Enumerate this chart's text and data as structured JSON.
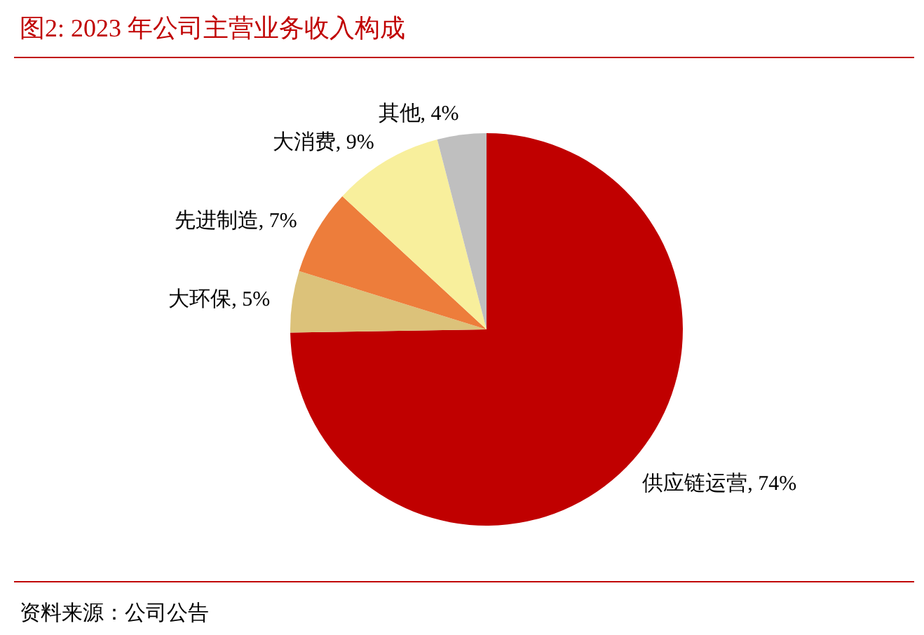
{
  "chart_data": {
    "type": "pie",
    "title": "图2:  2023 年公司主营业务收入构成",
    "categories": [
      "供应链运营",
      "大环保",
      "先进制造",
      "大消费",
      "其他"
    ],
    "values": [
      74,
      5,
      7,
      9,
      4
    ],
    "value_labels": [
      "74%",
      "5%",
      "7%",
      "9%",
      "4%"
    ],
    "colors": [
      "#c00000",
      "#dcc27a",
      "#ed7d3b",
      "#f8ef9c",
      "#bfbfbf"
    ],
    "annotations": [
      "资料来源：公司公告"
    ]
  }
}
